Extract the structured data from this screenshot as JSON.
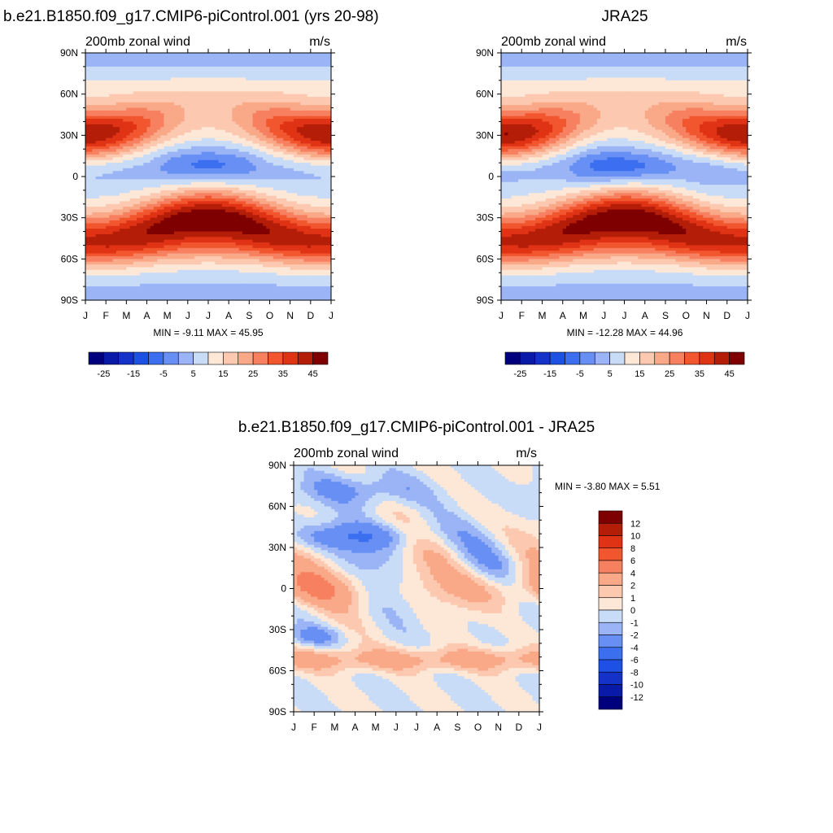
{
  "months": [
    "J",
    "F",
    "M",
    "A",
    "M",
    "J",
    "J",
    "A",
    "S",
    "O",
    "N",
    "D",
    "J"
  ],
  "lat_labels": [
    "90N",
    "60N",
    "30N",
    "0",
    "30S",
    "60S",
    "90S"
  ],
  "panels": [
    {
      "title": "b.e21.B1850.f09_g17.CMIP6-piControl.001 (yrs 20-98)",
      "left_label": "200mb zonal wind",
      "right_label": "m/s",
      "stats": "MIN =  -9.11 MAX =  45.95"
    },
    {
      "title": "JRA25",
      "left_label": "200mb zonal wind",
      "right_label": "m/s",
      "stats": "MIN = -12.28 MAX =  44.96"
    },
    {
      "title": "b.e21.B1850.f09_g17.CMIP6-piControl.001 - JRA25",
      "left_label": "200mb zonal wind",
      "right_label": "m/s",
      "stats": "MIN =  -3.80 MAX =   5.51"
    }
  ],
  "colorbar_main": {
    "colors": [
      "#00007f",
      "#0a1aa8",
      "#1432c8",
      "#1f50e6",
      "#3c6ef0",
      "#6890f4",
      "#9ab4f5",
      "#c8dcf8",
      "#fde8d8",
      "#fcc9b0",
      "#f9a888",
      "#f78060",
      "#f2562e",
      "#e03214",
      "#b41e08",
      "#7f0000"
    ],
    "labels": [
      "-25",
      "-15",
      "-5",
      "5",
      "15",
      "25",
      "35",
      "45"
    ]
  },
  "colorbar_diff": {
    "colors": [
      "#00007f",
      "#0a1aa8",
      "#1432c8",
      "#1f50e6",
      "#3c6ef0",
      "#6890f4",
      "#9ab4f5",
      "#c8dcf8",
      "#fde8d8",
      "#fcc9b0",
      "#f9a888",
      "#f78060",
      "#f2562e",
      "#e03214",
      "#b41e08",
      "#7f0000"
    ],
    "labels": [
      "-12",
      "-10",
      "-8",
      "-6",
      "-4",
      "-2",
      "-1",
      "0",
      "1",
      "2",
      "4",
      "6",
      "8",
      "10",
      "12"
    ]
  },
  "chart_data": [
    {
      "type": "heatmap",
      "title": "b.e21.B1850.f09_g17.CMIP6-piControl.001 (yrs 20-98)",
      "subtitle_left": "200mb zonal wind",
      "subtitle_right": "m/s",
      "x_ticks": [
        "J",
        "F",
        "M",
        "A",
        "M",
        "J",
        "J",
        "A",
        "S",
        "O",
        "N",
        "D",
        "J"
      ],
      "y_ticks": [
        "90N",
        "60N",
        "30N",
        "0",
        "30S",
        "60S",
        "90S"
      ],
      "ylim": [
        -90,
        90
      ],
      "min": -9.11,
      "max": 45.95,
      "levels": [
        -30,
        -25,
        -20,
        -15,
        -10,
        -5,
        0,
        5,
        10,
        15,
        20,
        25,
        30,
        35,
        40,
        45
      ]
    },
    {
      "type": "heatmap",
      "title": "JRA25",
      "subtitle_left": "200mb zonal wind",
      "subtitle_right": "m/s",
      "x_ticks": [
        "J",
        "F",
        "M",
        "A",
        "M",
        "J",
        "J",
        "A",
        "S",
        "O",
        "N",
        "D",
        "J"
      ],
      "y_ticks": [
        "90N",
        "60N",
        "30N",
        "0",
        "30S",
        "60S",
        "90S"
      ],
      "ylim": [
        -90,
        90
      ],
      "min": -12.28,
      "max": 44.96,
      "levels": [
        -30,
        -25,
        -20,
        -15,
        -10,
        -5,
        0,
        5,
        10,
        15,
        20,
        25,
        30,
        35,
        40,
        45
      ]
    },
    {
      "type": "heatmap",
      "title": "b.e21.B1850.f09_g17.CMIP6-piControl.001 - JRA25",
      "subtitle_left": "200mb zonal wind",
      "subtitle_right": "m/s",
      "x_ticks": [
        "J",
        "F",
        "M",
        "A",
        "M",
        "J",
        "J",
        "A",
        "S",
        "O",
        "N",
        "D",
        "J"
      ],
      "y_ticks": [
        "90N",
        "60N",
        "30N",
        "0",
        "30S",
        "60S",
        "90S"
      ],
      "ylim": [
        -90,
        90
      ],
      "min": -3.8,
      "max": 5.51,
      "levels": [
        -12,
        -10,
        -8,
        -6,
        -4,
        -2,
        -1,
        0,
        1,
        2,
        4,
        6,
        8,
        10,
        12
      ]
    }
  ]
}
